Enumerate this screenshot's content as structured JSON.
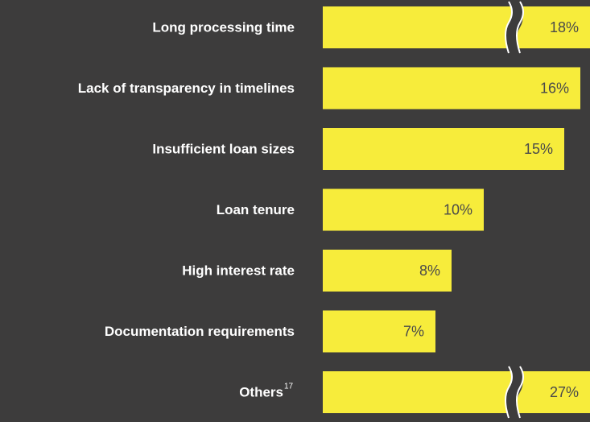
{
  "chart_data": {
    "type": "bar",
    "orientation": "horizontal",
    "categories": [
      "Long processing time",
      "Lack of transparency in timelines",
      "Insufficient loan sizes",
      "Loan tenure",
      "High interest rate",
      "Documentation requirements",
      "Others"
    ],
    "category_footnotes": [
      null,
      null,
      null,
      null,
      null,
      null,
      "17"
    ],
    "values": [
      18,
      16,
      15,
      10,
      8,
      7,
      27
    ],
    "value_labels": [
      "18%",
      "16%",
      "15%",
      "10%",
      "8%",
      "7%",
      "27%"
    ],
    "color": "#f7ec3b",
    "xlim": [
      0,
      16.6
    ]
  }
}
